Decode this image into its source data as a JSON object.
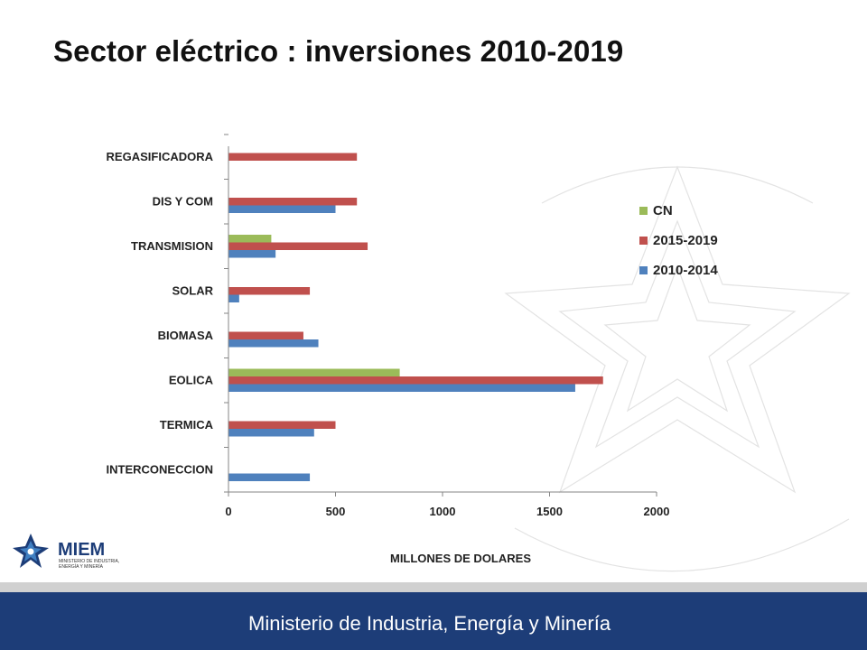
{
  "slide": {
    "title": "Sector eléctrico : inversiones 2010-2019"
  },
  "logo": {
    "name": "MIEM",
    "subtitle_line1": "MINISTERIO DE INDUSTRIA,",
    "subtitle_line2": "ENERGÍA Y MINERÍA"
  },
  "footer": {
    "text": "Ministerio de Industria, Energía y Minería"
  },
  "colors": {
    "footer_bg": "#1d3d78",
    "series_2010_2014": "#4f81bd",
    "series_2015_2019": "#c0504d",
    "series_CN": "#9bbb59"
  },
  "chart_data": {
    "type": "bar",
    "orientation": "horizontal",
    "categories": [
      "INTERCONECCION",
      "TERMICA",
      "EOLICA",
      "BIOMASA",
      "SOLAR",
      "TRANSMISION",
      "DIS Y COM",
      "REGASIFICADORA"
    ],
    "series": [
      {
        "name": "2010-2014",
        "color": "#4f81bd",
        "values": [
          380,
          400,
          1620,
          420,
          50,
          220,
          500,
          0
        ]
      },
      {
        "name": "2015-2019",
        "color": "#c0504d",
        "values": [
          0,
          500,
          1750,
          350,
          380,
          650,
          600,
          600
        ]
      },
      {
        "name": "CN",
        "color": "#9bbb59",
        "values": [
          0,
          0,
          800,
          0,
          0,
          200,
          0,
          0
        ]
      }
    ],
    "xlabel": "MILLONES DE DOLARES",
    "ylabel": "",
    "xlim": [
      0,
      2000
    ],
    "xticks": [
      0,
      500,
      1000,
      1500,
      2000
    ],
    "legend_order": [
      "CN",
      "2015-2019",
      "2010-2014"
    ],
    "legend_position": "right",
    "grid": false
  }
}
